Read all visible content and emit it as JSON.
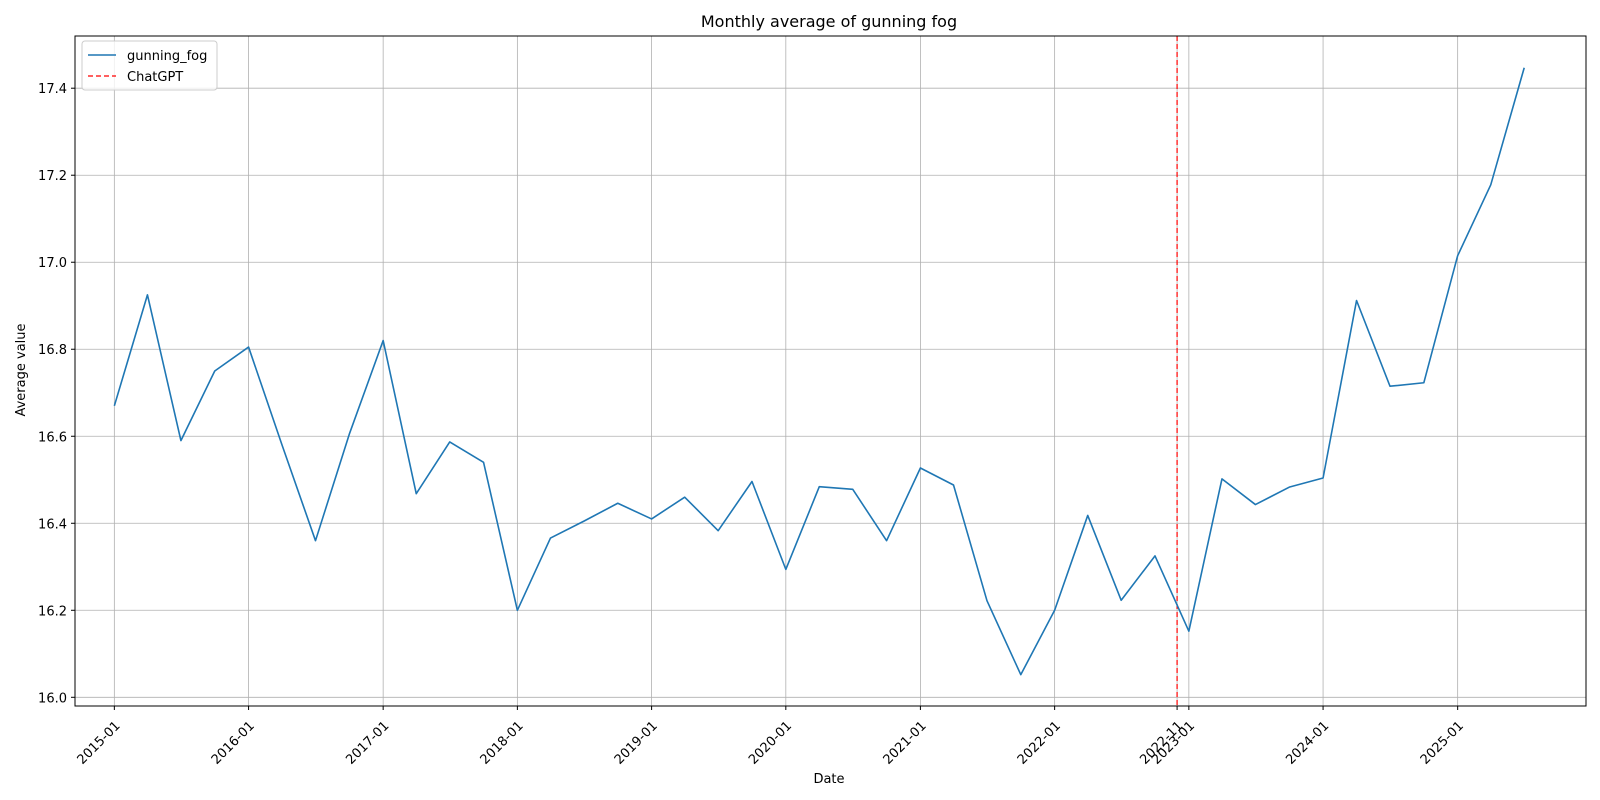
{
  "chart_data": {
    "type": "line",
    "title": "Monthly average of gunning fog",
    "xlabel": "Date",
    "ylabel": "Average value",
    "ylim": [
      15.98,
      17.52
    ],
    "yticks": [
      "16.0",
      "16.2",
      "16.4",
      "16.6",
      "16.8",
      "17.0",
      "17.2",
      "17.4"
    ],
    "x_ticks": [
      {
        "label": "2015-01",
        "date": "2015-01-01"
      },
      {
        "label": "2016-01",
        "date": "2016-01-01"
      },
      {
        "label": "2017-01",
        "date": "2017-01-01"
      },
      {
        "label": "2018-01",
        "date": "2018-01-01"
      },
      {
        "label": "2019-01",
        "date": "2019-01-01"
      },
      {
        "label": "2020-01",
        "date": "2020-01-01"
      },
      {
        "label": "2021-01",
        "date": "2021-01-01"
      },
      {
        "label": "2022-01",
        "date": "2022-01-01"
      },
      {
        "label": "2022-11",
        "date": "2022-11-30"
      },
      {
        "label": "2023-01",
        "date": "2023-01-01"
      },
      {
        "label": "2024-01",
        "date": "2024-01-01"
      },
      {
        "label": "2025-01",
        "date": "2025-01-01"
      }
    ],
    "xlim": [
      "2014-09-16",
      "2025-12-16"
    ],
    "grid": true,
    "legend_position": "top-left",
    "series": [
      {
        "name": "gunning_fog",
        "color": "#1f77b4",
        "style": "solid",
        "x": [
          "2015-01-01",
          "2015-04-01",
          "2015-07-01",
          "2015-10-01",
          "2016-01-01",
          "2016-04-01",
          "2016-07-01",
          "2016-10-01",
          "2017-01-01",
          "2017-04-01",
          "2017-07-01",
          "2017-10-01",
          "2018-01-01",
          "2018-04-01",
          "2018-07-01",
          "2018-10-01",
          "2019-01-01",
          "2019-04-01",
          "2019-07-01",
          "2019-10-01",
          "2020-01-01",
          "2020-04-01",
          "2020-07-01",
          "2020-10-01",
          "2021-01-01",
          "2021-04-01",
          "2021-07-01",
          "2021-10-01",
          "2022-01-01",
          "2022-04-01",
          "2022-07-01",
          "2022-10-01",
          "2023-01-01",
          "2023-04-01",
          "2023-07-01",
          "2023-10-01",
          "2024-01-01",
          "2024-04-01",
          "2024-07-01",
          "2024-10-01",
          "2025-01-01",
          "2025-04-01",
          "2025-07-01"
        ],
        "values": [
          16.67,
          16.925,
          16.59,
          16.75,
          16.805,
          16.58,
          16.36,
          16.605,
          16.82,
          16.468,
          16.587,
          16.54,
          16.2,
          16.366,
          16.405,
          16.446,
          16.41,
          16.46,
          16.383,
          16.496,
          16.294,
          16.484,
          16.478,
          16.36,
          16.527,
          16.488,
          16.222,
          16.052,
          16.2,
          16.418,
          16.223,
          16.325,
          16.152,
          16.502,
          16.443,
          16.483,
          16.504,
          16.912,
          16.715,
          16.723,
          17.015,
          17.178,
          17.447
        ]
      }
    ],
    "reference_lines": [
      {
        "name": "ChatGPT",
        "date": "2022-11-30",
        "color": "#ff0000",
        "style": "dashed"
      }
    ]
  }
}
